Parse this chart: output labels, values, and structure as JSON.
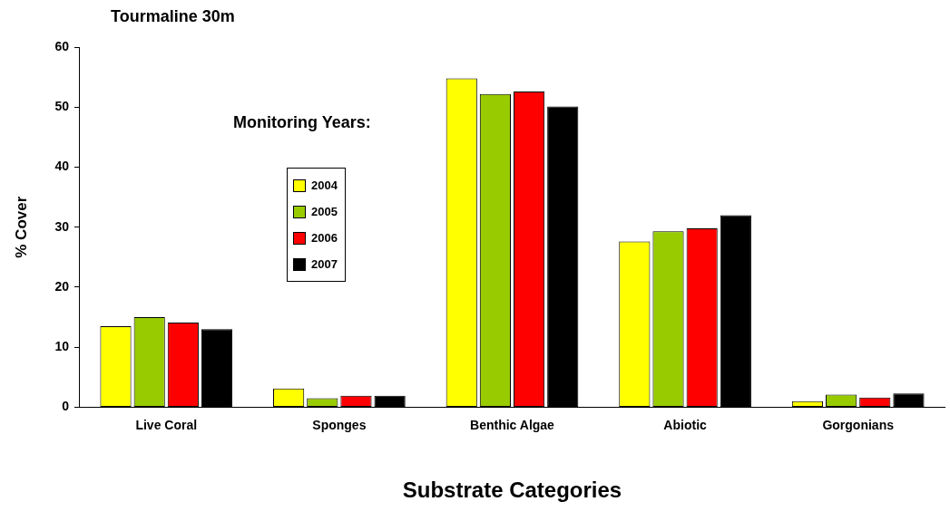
{
  "chart_data": {
    "type": "bar",
    "title": "Tourmaline 30m",
    "xlabel": "Substrate Categories",
    "ylabel": "% Cover",
    "legend_title": "Monitoring Years:",
    "categories": [
      "Live Coral",
      "Sponges",
      "Benthic Algae",
      "Abiotic",
      "Gorgonians"
    ],
    "series": [
      {
        "name": "2004",
        "color": "#ffff00",
        "values": [
          13.5,
          3.1,
          54.8,
          27.6,
          1.0
        ]
      },
      {
        "name": "2005",
        "color": "#99cc00",
        "values": [
          15.0,
          1.5,
          52.2,
          29.3,
          2.1
        ]
      },
      {
        "name": "2006",
        "color": "#ff0000",
        "values": [
          14.1,
          1.9,
          52.6,
          29.8,
          1.6
        ]
      },
      {
        "name": "2007",
        "color": "#000000",
        "values": [
          13.0,
          1.9,
          50.1,
          32.0,
          2.3
        ]
      }
    ],
    "ylim": [
      0,
      60
    ],
    "yticks": [
      0,
      10,
      20,
      30,
      40,
      50,
      60
    ],
    "grid": false,
    "legend": "top left"
  }
}
